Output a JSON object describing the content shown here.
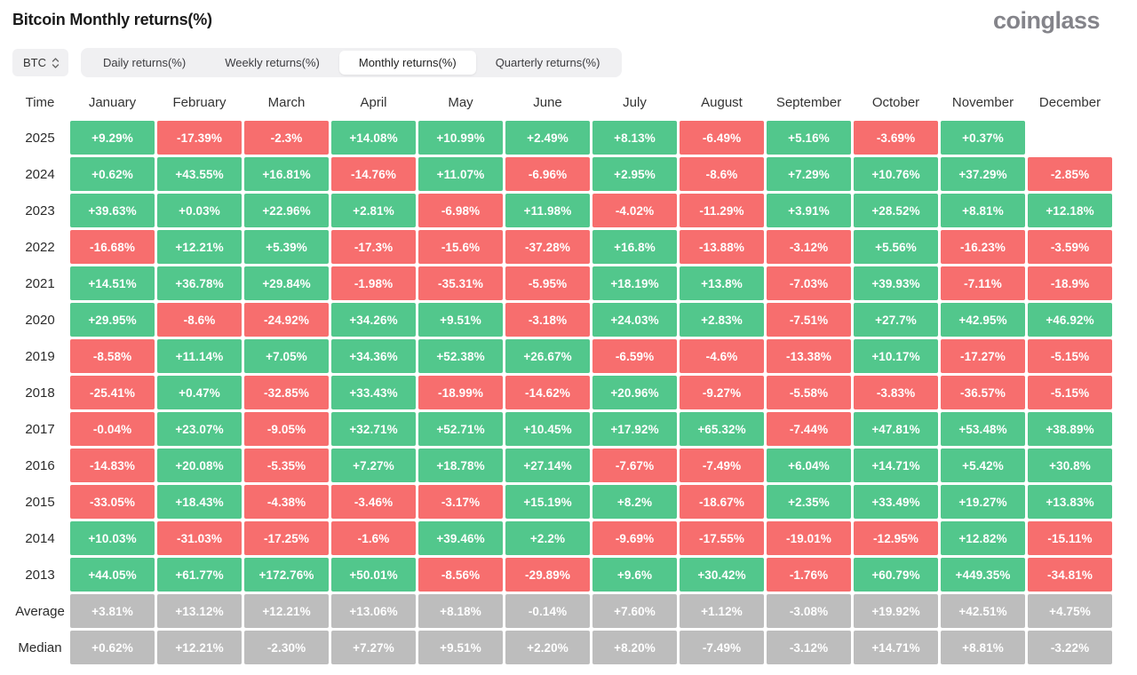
{
  "header": {
    "title": "Bitcoin Monthly returns(%)",
    "logo_text": "coinglass"
  },
  "controls": {
    "symbol_select": {
      "value": "BTC",
      "icon": "updown-chevrons-icon"
    },
    "tabs": [
      {
        "label": "Daily returns(%)",
        "active": false
      },
      {
        "label": "Weekly returns(%)",
        "active": false
      },
      {
        "label": "Monthly returns(%)",
        "active": true
      },
      {
        "label": "Quarterly returns(%)",
        "active": false
      }
    ]
  },
  "palette": {
    "positive": "#52c78c",
    "negative": "#f76e6e",
    "neutral": "#bdbdbd",
    "cell_text": "#ffffff"
  },
  "chart_data": {
    "type": "heatmap",
    "title": "Bitcoin Monthly returns(%)",
    "time_column_label": "Time",
    "columns": [
      "January",
      "February",
      "March",
      "April",
      "May",
      "June",
      "July",
      "August",
      "September",
      "October",
      "November",
      "December"
    ],
    "rows": [
      {
        "label": "2025",
        "style": "signed",
        "values": [
          "+9.29%",
          "-17.39%",
          "-2.3%",
          "+14.08%",
          "+10.99%",
          "+2.49%",
          "+8.13%",
          "-6.49%",
          "+5.16%",
          "-3.69%",
          "+0.37%",
          null
        ]
      },
      {
        "label": "2024",
        "style": "signed",
        "values": [
          "+0.62%",
          "+43.55%",
          "+16.81%",
          "-14.76%",
          "+11.07%",
          "-6.96%",
          "+2.95%",
          "-8.6%",
          "+7.29%",
          "+10.76%",
          "+37.29%",
          "-2.85%"
        ]
      },
      {
        "label": "2023",
        "style": "signed",
        "values": [
          "+39.63%",
          "+0.03%",
          "+22.96%",
          "+2.81%",
          "-6.98%",
          "+11.98%",
          "-4.02%",
          "-11.29%",
          "+3.91%",
          "+28.52%",
          "+8.81%",
          "+12.18%"
        ]
      },
      {
        "label": "2022",
        "style": "signed",
        "values": [
          "-16.68%",
          "+12.21%",
          "+5.39%",
          "-17.3%",
          "-15.6%",
          "-37.28%",
          "+16.8%",
          "-13.88%",
          "-3.12%",
          "+5.56%",
          "-16.23%",
          "-3.59%"
        ]
      },
      {
        "label": "2021",
        "style": "signed",
        "values": [
          "+14.51%",
          "+36.78%",
          "+29.84%",
          "-1.98%",
          "-35.31%",
          "-5.95%",
          "+18.19%",
          "+13.8%",
          "-7.03%",
          "+39.93%",
          "-7.11%",
          "-18.9%"
        ]
      },
      {
        "label": "2020",
        "style": "signed",
        "values": [
          "+29.95%",
          "-8.6%",
          "-24.92%",
          "+34.26%",
          "+9.51%",
          "-3.18%",
          "+24.03%",
          "+2.83%",
          "-7.51%",
          "+27.7%",
          "+42.95%",
          "+46.92%"
        ]
      },
      {
        "label": "2019",
        "style": "signed",
        "values": [
          "-8.58%",
          "+11.14%",
          "+7.05%",
          "+34.36%",
          "+52.38%",
          "+26.67%",
          "-6.59%",
          "-4.6%",
          "-13.38%",
          "+10.17%",
          "-17.27%",
          "-5.15%"
        ]
      },
      {
        "label": "2018",
        "style": "signed",
        "values": [
          "-25.41%",
          "+0.47%",
          "-32.85%",
          "+33.43%",
          "-18.99%",
          "-14.62%",
          "+20.96%",
          "-9.27%",
          "-5.58%",
          "-3.83%",
          "-36.57%",
          "-5.15%"
        ]
      },
      {
        "label": "2017",
        "style": "signed",
        "values": [
          "-0.04%",
          "+23.07%",
          "-9.05%",
          "+32.71%",
          "+52.71%",
          "+10.45%",
          "+17.92%",
          "+65.32%",
          "-7.44%",
          "+47.81%",
          "+53.48%",
          "+38.89%"
        ]
      },
      {
        "label": "2016",
        "style": "signed",
        "values": [
          "-14.83%",
          "+20.08%",
          "-5.35%",
          "+7.27%",
          "+18.78%",
          "+27.14%",
          "-7.67%",
          "-7.49%",
          "+6.04%",
          "+14.71%",
          "+5.42%",
          "+30.8%"
        ]
      },
      {
        "label": "2015",
        "style": "signed",
        "values": [
          "-33.05%",
          "+18.43%",
          "-4.38%",
          "-3.46%",
          "-3.17%",
          "+15.19%",
          "+8.2%",
          "-18.67%",
          "+2.35%",
          "+33.49%",
          "+19.27%",
          "+13.83%"
        ]
      },
      {
        "label": "2014",
        "style": "signed",
        "values": [
          "+10.03%",
          "-31.03%",
          "-17.25%",
          "-1.6%",
          "+39.46%",
          "+2.2%",
          "-9.69%",
          "-17.55%",
          "-19.01%",
          "-12.95%",
          "+12.82%",
          "-15.11%"
        ]
      },
      {
        "label": "2013",
        "style": "signed",
        "values": [
          "+44.05%",
          "+61.77%",
          "+172.76%",
          "+50.01%",
          "-8.56%",
          "-29.89%",
          "+9.6%",
          "+30.42%",
          "-1.76%",
          "+60.79%",
          "+449.35%",
          "-34.81%"
        ]
      },
      {
        "label": "Average",
        "style": "neutral",
        "values": [
          "+3.81%",
          "+13.12%",
          "+12.21%",
          "+13.06%",
          "+8.18%",
          "-0.14%",
          "+7.60%",
          "+1.12%",
          "-3.08%",
          "+19.92%",
          "+42.51%",
          "+4.75%"
        ]
      },
      {
        "label": "Median",
        "style": "neutral",
        "values": [
          "+0.62%",
          "+12.21%",
          "-2.30%",
          "+7.27%",
          "+9.51%",
          "+2.20%",
          "+8.20%",
          "-7.49%",
          "-3.12%",
          "+14.71%",
          "+8.81%",
          "-3.22%"
        ]
      }
    ]
  }
}
